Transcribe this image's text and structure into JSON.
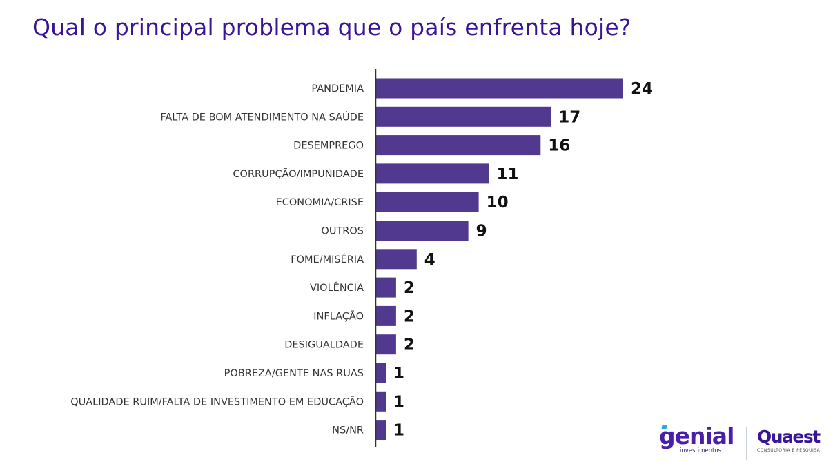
{
  "title": "Qual o principal problema que o país enfrenta hoje?",
  "colors": {
    "bar": "#51398f",
    "title": "#3a1496",
    "axis": "#333333"
  },
  "chart_data": {
    "type": "bar",
    "orientation": "horizontal",
    "title": "Qual o principal problema que o país enfrenta hoje?",
    "xlabel": "",
    "ylabel": "",
    "categories": [
      "PANDEMIA",
      "FALTA DE BOM ATENDIMENTO NA SAÚDE",
      "DESEMPREGO",
      "CORRUPÇÃO/IMPUNIDADE",
      "ECONOMIA/CRISE",
      "OUTROS",
      "FOME/MISÉRIA",
      "VIOLÊNCIA",
      "INFLAÇÃO",
      "DESIGUALDADE",
      "POBREZA/GENTE NAS RUAS",
      "QUALIDADE RUIM/FALTA DE INVESTIMENTO EM EDUCAÇÃO",
      "NS/NR"
    ],
    "values": [
      24,
      17,
      16,
      11,
      10,
      9,
      4,
      2,
      2,
      2,
      1,
      1,
      1
    ],
    "data_labels": [
      "24",
      "17",
      "16",
      "11",
      "10",
      "9",
      "4",
      "2",
      "2",
      "2",
      "1",
      "1",
      "1"
    ],
    "xlim": [
      0,
      24
    ],
    "grid": false,
    "legend": "none"
  },
  "logos": {
    "genial": {
      "name": "genial",
      "subtitle": "investimentos"
    },
    "quaest": {
      "name": "Quaest",
      "subtitle": "CONSULTORIA E PESQUISA"
    }
  }
}
